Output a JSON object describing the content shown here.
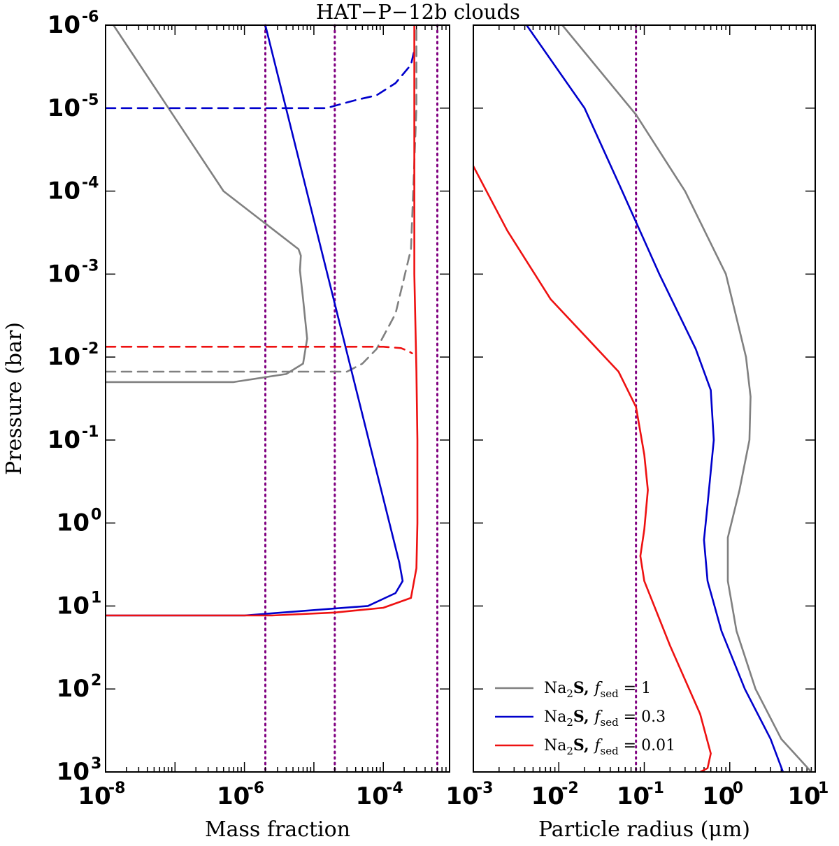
{
  "chart_data": {
    "type": "line",
    "title": "HAT−P−12b clouds",
    "panels": [
      {
        "name": "mass-fraction",
        "xlabel": "Mass fraction",
        "ylabel": "Pressure (bar)",
        "xscale": "log",
        "yscale": "log",
        "xlim": [
          1e-08,
          0.0009
        ],
        "ylim": [
          1000,
          1e-06
        ],
        "y_inverted": true,
        "x_tick_exponents": [
          "-8",
          "-6",
          "-4"
        ],
        "y_tick_exponents": [
          "-6",
          "-5",
          "-4",
          "-3",
          "-2",
          "-1",
          "0",
          "1",
          "2",
          "3"
        ],
        "vlines": [
          2e-06,
          2e-05,
          0.0006
        ],
        "series": [
          {
            "name": "Na2S fsed=1 (solid)",
            "color": "#808080",
            "style": "solid",
            "x": [
              1.3e-08,
              5e-07,
              6e-06,
              6.5e-06,
              6.3e-06,
              7e-06,
              8e-06,
              7e-06,
              4e-06,
              7e-07,
              1e-08
            ],
            "y": [
              1e-06,
              0.0001,
              0.0005,
              0.0006,
              0.0009,
              0.002,
              0.006,
              0.012,
              0.016,
              0.02,
              0.02
            ]
          },
          {
            "name": "Na2S fsed=1 (dashed)",
            "color": "#808080",
            "style": "dashed",
            "x": [
              1e-08,
              3e-05,
              5e-05,
              8e-05,
              0.00015,
              0.00025,
              0.0003,
              0.0003
            ],
            "y": [
              0.015,
              0.015,
              0.012,
              0.008,
              0.003,
              0.0005,
              1e-05,
              1e-06
            ]
          },
          {
            "name": "Na2S fsed=0.3 (solid)",
            "color": "#0000cc",
            "style": "solid",
            "x": [
              2e-06,
              0.00017,
              0.00019,
              0.00015,
              6e-05,
              1e-06,
              1e-08
            ],
            "y": [
              1e-06,
              3,
              5,
              7,
              10,
              13,
              13
            ]
          },
          {
            "name": "Na2S fsed=0.3 (dashed)",
            "color": "#0000cc",
            "style": "dashed",
            "x": [
              1e-08,
              1.5e-05,
              4e-05,
              8e-05,
              0.00015,
              0.00025,
              0.00028
            ],
            "y": [
              1e-05,
              1e-05,
              8e-06,
              7e-06,
              5e-06,
              3e-06,
              2e-06
            ]
          },
          {
            "name": "Na2S fsed=0.01 (solid)",
            "color": "#ee1111",
            "style": "solid",
            "x": [
              0.00028,
              0.00028,
              0.0003,
              0.00031,
              0.00031,
              0.0003,
              0.00025,
              0.0001,
              2e-05,
              2.5e-06,
              1e-08
            ],
            "y": [
              1e-06,
              0.001,
              0.015,
              0.1,
              1,
              3.5,
              8,
              10.5,
              12,
              13,
              13
            ]
          },
          {
            "name": "Na2S fsed=0.01 (dashed)",
            "color": "#ee1111",
            "style": "dashed",
            "x": [
              1e-08,
              0.0001,
              0.00018,
              0.00023,
              0.00026
            ],
            "y": [
              0.0075,
              0.0075,
              0.0078,
              0.0085,
              0.009
            ]
          }
        ]
      },
      {
        "name": "particle-radius",
        "xlabel": "Particle radius (μm)",
        "ylabel": "",
        "xscale": "log",
        "yscale": "log",
        "xlim": [
          0.001,
          10
        ],
        "ylim": [
          1000,
          1e-06
        ],
        "y_inverted": true,
        "x_tick_exponents": [
          "-3",
          "-2",
          "-1",
          "0",
          "1"
        ],
        "vlines": [
          0.08
        ],
        "series": [
          {
            "name": "Na2S fsed=1",
            "color": "#808080",
            "style": "solid",
            "x": [
              0.011,
              0.08,
              0.3,
              0.9,
              1.55,
              1.75,
              1.7,
              1.3,
              0.95,
              0.95,
              1.2,
              2.0,
              4.0,
              9.0
            ],
            "y": [
              1e-06,
              1.2e-05,
              0.0001,
              0.001,
              0.01,
              0.03,
              0.1,
              0.4,
              1.5,
              5,
              20,
              100,
              400,
              1000
            ]
          },
          {
            "name": "Na2S fsed=0.3",
            "color": "#0000cc",
            "style": "solid",
            "x": [
              0.0042,
              0.02,
              0.05,
              0.15,
              0.4,
              0.6,
              0.65,
              0.55,
              0.5,
              0.55,
              0.8,
              1.5,
              3.0,
              4.2
            ],
            "y": [
              1e-06,
              1e-05,
              8e-05,
              0.001,
              0.008,
              0.025,
              0.1,
              0.6,
              1.6,
              5,
              20,
              100,
              400,
              1000
            ]
          },
          {
            "name": "Na2S fsed=0.01",
            "color": "#ee1111",
            "style": "solid",
            "x": [
              0.001,
              0.0025,
              0.008,
              0.025,
              0.05,
              0.08,
              0.1,
              0.11,
              0.1,
              0.09,
              0.1,
              0.2,
              0.45,
              0.6,
              0.55,
              0.45
            ],
            "y": [
              5e-05,
              0.0003,
              0.002,
              0.007,
              0.015,
              0.04,
              0.15,
              0.4,
              1.2,
              2.5,
              5,
              30,
              200,
              600,
              900,
              1000
            ]
          }
        ]
      }
    ],
    "legend": {
      "location": "bottom-right",
      "entries": [
        {
          "label": "Na2S, fsed = 1",
          "text": "Na",
          "sub": "2",
          "text2": "S, ",
          "f": "f",
          "fsub": "sed",
          "value": " = 1",
          "color": "#808080"
        },
        {
          "label": "Na2S, fsed = 0.3",
          "text": "Na",
          "sub": "2",
          "text2": "S, ",
          "f": "f",
          "fsub": "sed",
          "value": " = 0.3",
          "color": "#0000cc"
        },
        {
          "label": "Na2S, fsed = 0.01",
          "text": "Na",
          "sub": "2",
          "text2": "S, ",
          "f": "f",
          "fsub": "sed",
          "value": " = 0.01",
          "color": "#ee1111"
        }
      ]
    },
    "tick_base": "10",
    "vline_color": "#800080"
  }
}
